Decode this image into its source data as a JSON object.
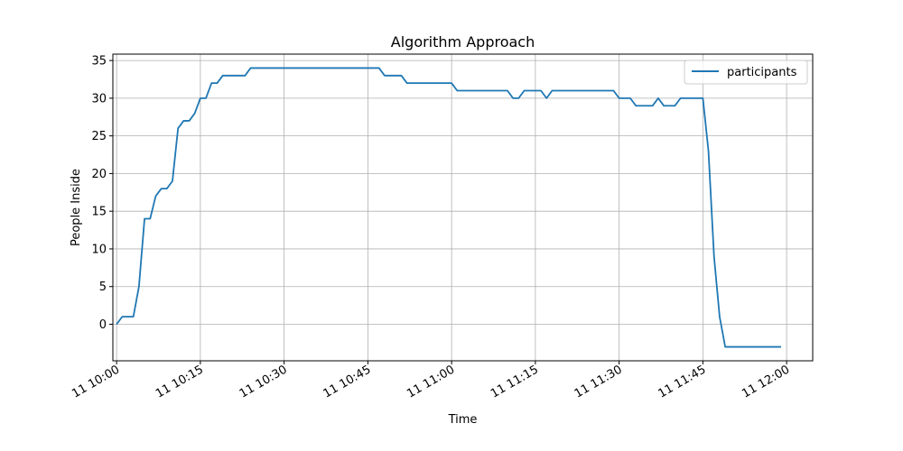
{
  "chart_data": {
    "type": "line",
    "title": "Algorithm Approach",
    "xlabel": "Time",
    "ylabel": "People Inside",
    "grid": true,
    "legend_position": "top-right",
    "xlim": [
      -0.67,
      124.67
    ],
    "ylim": [
      -4.85,
      35.85
    ],
    "x_unit": "minutes after 11 10:00",
    "x_ticks": [
      {
        "value": 0,
        "label": "11 10:00"
      },
      {
        "value": 15,
        "label": "11 10:15"
      },
      {
        "value": 30,
        "label": "11 10:30"
      },
      {
        "value": 45,
        "label": "11 10:45"
      },
      {
        "value": 60,
        "label": "11 11:00"
      },
      {
        "value": 75,
        "label": "11 11:15"
      },
      {
        "value": 90,
        "label": "11 11:30"
      },
      {
        "value": 105,
        "label": "11 11:45"
      },
      {
        "value": 120,
        "label": "11 12:00"
      }
    ],
    "y_ticks": [
      {
        "value": 0,
        "label": "0"
      },
      {
        "value": 5,
        "label": "5"
      },
      {
        "value": 10,
        "label": "10"
      },
      {
        "value": 15,
        "label": "15"
      },
      {
        "value": 20,
        "label": "20"
      },
      {
        "value": 25,
        "label": "25"
      },
      {
        "value": 30,
        "label": "30"
      },
      {
        "value": 35,
        "label": "35"
      }
    ],
    "series": [
      {
        "name": "participants",
        "color": "#1f77b4",
        "x": [
          0,
          1,
          2,
          3,
          4,
          5,
          6,
          7,
          8,
          9,
          10,
          11,
          12,
          13,
          14,
          15,
          16,
          17,
          18,
          19,
          20,
          21,
          22,
          23,
          24,
          25,
          26,
          27,
          28,
          29,
          30,
          31,
          32,
          33,
          34,
          35,
          36,
          37,
          38,
          39,
          40,
          41,
          42,
          43,
          44,
          45,
          46,
          47,
          48,
          49,
          50,
          51,
          52,
          53,
          54,
          55,
          56,
          57,
          58,
          59,
          60,
          61,
          62,
          63,
          64,
          65,
          66,
          67,
          68,
          69,
          70,
          71,
          72,
          73,
          74,
          75,
          76,
          77,
          78,
          79,
          80,
          81,
          82,
          83,
          84,
          85,
          86,
          87,
          88,
          89,
          90,
          91,
          92,
          93,
          94,
          95,
          96,
          97,
          98,
          99,
          100,
          101,
          102,
          103,
          104,
          105,
          106,
          107,
          108,
          109,
          110,
          111,
          112,
          113,
          114,
          115,
          116,
          117,
          118,
          119
        ],
        "y": [
          0,
          1,
          1,
          1,
          5,
          14,
          14,
          17,
          18,
          18,
          19,
          26,
          27,
          27,
          28,
          30,
          30,
          32,
          32,
          33,
          33,
          33,
          33,
          33,
          34,
          34,
          34,
          34,
          34,
          34,
          34,
          34,
          34,
          34,
          34,
          34,
          34,
          34,
          34,
          34,
          34,
          34,
          34,
          34,
          34,
          34,
          34,
          34,
          33,
          33,
          33,
          33,
          32,
          32,
          32,
          32,
          32,
          32,
          32,
          32,
          32,
          31,
          31,
          31,
          31,
          31,
          31,
          31,
          31,
          31,
          31,
          30,
          30,
          31,
          31,
          31,
          31,
          30,
          31,
          31,
          31,
          31,
          31,
          31,
          31,
          31,
          31,
          31,
          31,
          31,
          30,
          30,
          30,
          29,
          29,
          29,
          29,
          30,
          29,
          29,
          29,
          30,
          30,
          30,
          30,
          30,
          23,
          9,
          1,
          -3,
          -3,
          -3,
          -3,
          -3,
          -3,
          -3,
          -3,
          -3,
          -3,
          -3
        ]
      }
    ]
  }
}
